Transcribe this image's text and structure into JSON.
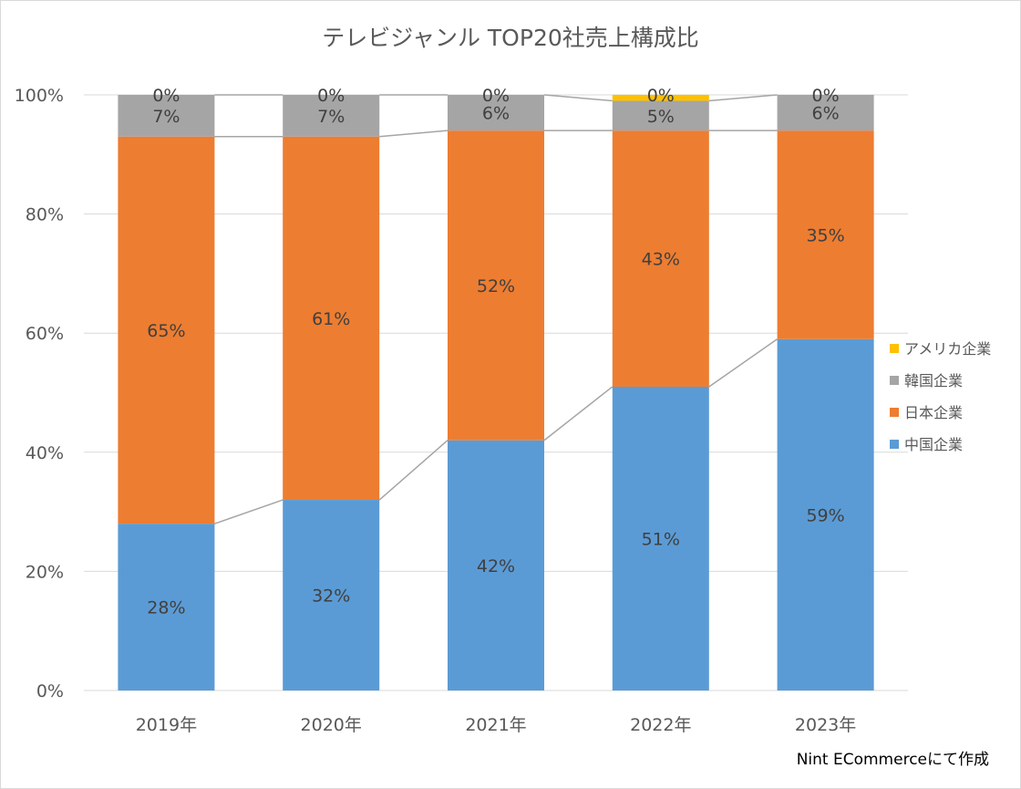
{
  "chart_data": {
    "type": "bar",
    "stacked": true,
    "normalized": true,
    "title": "テレビジャンル TOP20社売上構成比",
    "categories": [
      "2019年",
      "2020年",
      "2021年",
      "2022年",
      "2023年"
    ],
    "y_ticks": [
      "0%",
      "20%",
      "40%",
      "60%",
      "80%",
      "100%"
    ],
    "ylim": [
      0,
      100
    ],
    "grid": true,
    "legend_position": "right",
    "series": [
      {
        "name": "中国企業",
        "color": "#5B9BD5",
        "values": [
          28,
          32,
          42,
          51,
          59
        ],
        "labels": [
          "28%",
          "32%",
          "42%",
          "51%",
          "59%"
        ]
      },
      {
        "name": "日本企業",
        "color": "#ED7D31",
        "values": [
          65,
          61,
          52,
          43,
          35
        ],
        "labels": [
          "65%",
          "61%",
          "52%",
          "43%",
          "35%"
        ]
      },
      {
        "name": "韓国企業",
        "color": "#A5A5A5",
        "values": [
          7,
          7,
          6,
          5,
          6
        ],
        "labels": [
          "7%",
          "7%",
          "6%",
          "5%",
          "6%"
        ]
      },
      {
        "name": "アメリカ企業",
        "color": "#FFC000",
        "values": [
          0,
          0,
          0,
          0,
          0.3
        ],
        "labels": [
          "0%",
          "0%",
          "0%",
          "0%",
          "0%"
        ]
      }
    ],
    "legend_order": [
      "アメリカ企業",
      "韓国企業",
      "日本企業",
      "中国企業"
    ],
    "series_lines": true
  },
  "credit": "Nint ECommerceにて作成"
}
